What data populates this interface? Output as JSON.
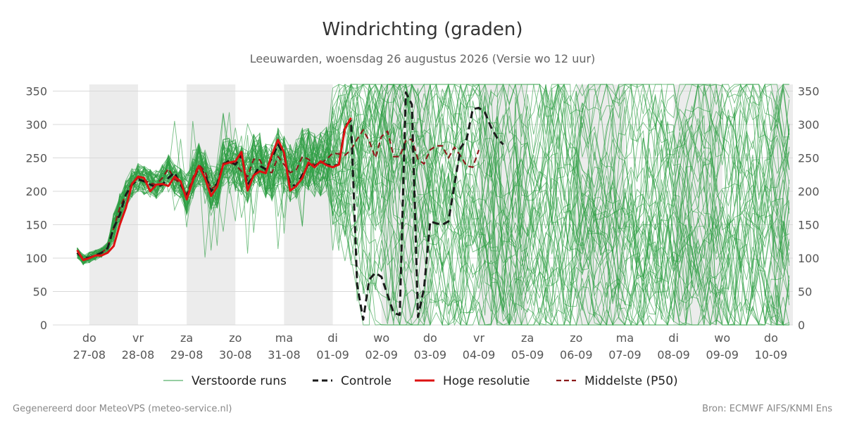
{
  "title": "Windrichting (graden)",
  "subtitle": "Leeuwarden, woensdag 26 augustus 2026 (Versie wo 12 uur)",
  "footer_left": "Gegenereerd door MeteoVPS (meteo-service.nl)",
  "footer_right": "Bron: ECMWF AIFS/KNMI Ens",
  "chart_data": {
    "type": "line",
    "title": "Windrichting (graden)",
    "ylim": [
      0,
      360
    ],
    "yticks": [
      0,
      50,
      100,
      150,
      200,
      250,
      300,
      350
    ],
    "x_unit": "days from 27-08 00:00",
    "xlim": [
      -0.75,
      14.45
    ],
    "day_labels": [
      {
        "x": 0,
        "day": "do",
        "date": "27-08"
      },
      {
        "x": 1,
        "day": "vr",
        "date": "28-08"
      },
      {
        "x": 2,
        "day": "za",
        "date": "29-08"
      },
      {
        "x": 3,
        "day": "zo",
        "date": "30-08"
      },
      {
        "x": 4,
        "day": "ma",
        "date": "31-08"
      },
      {
        "x": 5,
        "day": "di",
        "date": "01-09"
      },
      {
        "x": 6,
        "day": "wo",
        "date": "02-09"
      },
      {
        "x": 7,
        "day": "do",
        "date": "03-09"
      },
      {
        "x": 8,
        "day": "vr",
        "date": "04-09"
      },
      {
        "x": 9,
        "day": "za",
        "date": "05-09"
      },
      {
        "x": 10,
        "day": "zo",
        "date": "06-09"
      },
      {
        "x": 11,
        "day": "ma",
        "date": "07-09"
      },
      {
        "x": 12,
        "day": "di",
        "date": "08-09"
      },
      {
        "x": 13,
        "day": "wo",
        "date": "09-09"
      },
      {
        "x": 14,
        "day": "do",
        "date": "10-09"
      }
    ],
    "shaded_days": [
      [
        0,
        1
      ],
      [
        2,
        3
      ],
      [
        4,
        5
      ],
      [
        6,
        7
      ],
      [
        8,
        9
      ],
      [
        10,
        11
      ],
      [
        12,
        13
      ],
      [
        14,
        15
      ]
    ],
    "grid": true,
    "legend_position": "bottom",
    "series": [
      {
        "name": "Hoge resolutie",
        "color": "#dd1111",
        "style": "solid",
        "points": [
          [
            -0.25,
            112
          ],
          [
            -0.125,
            97
          ],
          [
            0,
            100
          ],
          [
            0.125,
            104
          ],
          [
            0.25,
            104
          ],
          [
            0.375,
            108
          ],
          [
            0.5,
            118
          ],
          [
            0.625,
            150
          ],
          [
            0.75,
            175
          ],
          [
            0.875,
            211
          ],
          [
            1,
            222
          ],
          [
            1.125,
            220
          ],
          [
            1.25,
            200
          ],
          [
            1.375,
            210
          ],
          [
            1.5,
            211
          ],
          [
            1.625,
            208
          ],
          [
            1.75,
            222
          ],
          [
            1.875,
            215
          ],
          [
            2,
            188
          ],
          [
            2.125,
            216
          ],
          [
            2.25,
            238
          ],
          [
            2.375,
            220
          ],
          [
            2.5,
            193
          ],
          [
            2.625,
            207
          ],
          [
            2.75,
            240
          ],
          [
            2.875,
            243
          ],
          [
            3,
            245
          ],
          [
            3.125,
            259
          ],
          [
            3.25,
            201
          ],
          [
            3.375,
            224
          ],
          [
            3.5,
            230
          ],
          [
            3.625,
            227
          ],
          [
            3.75,
            255
          ],
          [
            3.875,
            277
          ],
          [
            4,
            258
          ],
          [
            4.125,
            201
          ],
          [
            4.25,
            208
          ],
          [
            4.375,
            220
          ],
          [
            4.5,
            243
          ],
          [
            4.625,
            236
          ],
          [
            4.75,
            245
          ],
          [
            4.875,
            239
          ],
          [
            5,
            236
          ],
          [
            5.125,
            240
          ],
          [
            5.25,
            294
          ],
          [
            5.375,
            310
          ]
        ]
      },
      {
        "name": "Controle",
        "color": "#1a1a1a",
        "style": "dashed",
        "points": [
          [
            -0.25,
            108
          ],
          [
            -0.125,
            99
          ],
          [
            0,
            101
          ],
          [
            0.125,
            104
          ],
          [
            0.25,
            108
          ],
          [
            0.375,
            115
          ],
          [
            0.5,
            145
          ],
          [
            0.625,
            165
          ],
          [
            0.75,
            195
          ],
          [
            0.875,
            210
          ],
          [
            1,
            218
          ],
          [
            1.125,
            215
          ],
          [
            1.25,
            210
          ],
          [
            1.375,
            206
          ],
          [
            1.5,
            210
          ],
          [
            1.625,
            220
          ],
          [
            1.75,
            228
          ],
          [
            1.875,
            210
          ],
          [
            2,
            193
          ],
          [
            2.125,
            215
          ],
          [
            2.25,
            236
          ],
          [
            2.375,
            225
          ],
          [
            2.5,
            200
          ],
          [
            2.625,
            212
          ],
          [
            2.75,
            240
          ],
          [
            2.875,
            246
          ],
          [
            3,
            240
          ],
          [
            3.125,
            254
          ],
          [
            3.25,
            210
          ],
          [
            3.375,
            223
          ],
          [
            3.5,
            238
          ],
          [
            3.625,
            233
          ],
          [
            3.75,
            250
          ],
          [
            3.875,
            270
          ],
          [
            4,
            255
          ],
          [
            4.125,
            210
          ],
          [
            4.25,
            208
          ],
          [
            4.375,
            225
          ],
          [
            4.5,
            240
          ],
          [
            4.625,
            238
          ],
          [
            4.75,
            244
          ],
          [
            4.875,
            240
          ],
          [
            5,
            238
          ],
          [
            5.125,
            240
          ],
          [
            5.25,
            298
          ],
          [
            5.375,
            306
          ],
          [
            5.5,
            60
          ],
          [
            5.625,
            8
          ],
          [
            5.75,
            68
          ],
          [
            5.875,
            78
          ],
          [
            6,
            72
          ],
          [
            6.125,
            45
          ],
          [
            6.25,
            18
          ],
          [
            6.375,
            15
          ],
          [
            6.5,
            348
          ],
          [
            6.625,
            330
          ],
          [
            6.75,
            12
          ],
          [
            6.875,
            55
          ],
          [
            7,
            155
          ],
          [
            7.125,
            152
          ],
          [
            7.25,
            150
          ],
          [
            7.375,
            155
          ],
          [
            7.5,
            210
          ],
          [
            7.625,
            265
          ],
          [
            7.75,
            278
          ],
          [
            7.875,
            323
          ],
          [
            8,
            325
          ],
          [
            8.125,
            318
          ],
          [
            8.25,
            296
          ],
          [
            8.375,
            280
          ],
          [
            8.5,
            270
          ]
        ]
      },
      {
        "name": "Middelste (P50)",
        "color": "#8b1a1a",
        "style": "dashed",
        "points": [
          [
            -0.25,
            108
          ],
          [
            -0.125,
            98
          ],
          [
            0,
            101
          ],
          [
            0.125,
            104
          ],
          [
            0.25,
            108
          ],
          [
            0.375,
            116
          ],
          [
            0.5,
            145
          ],
          [
            0.625,
            175
          ],
          [
            0.75,
            195
          ],
          [
            0.875,
            212
          ],
          [
            1,
            220
          ],
          [
            1.125,
            217
          ],
          [
            1.25,
            212
          ],
          [
            1.375,
            210
          ],
          [
            1.5,
            220
          ],
          [
            1.625,
            234
          ],
          [
            1.75,
            218
          ],
          [
            1.875,
            212
          ],
          [
            2,
            195
          ],
          [
            2.125,
            220
          ],
          [
            2.25,
            240
          ],
          [
            2.375,
            230
          ],
          [
            2.5,
            203
          ],
          [
            2.625,
            210
          ],
          [
            2.75,
            242
          ],
          [
            2.875,
            243
          ],
          [
            3,
            240
          ],
          [
            3.125,
            230
          ],
          [
            3.25,
            222
          ],
          [
            3.375,
            248
          ],
          [
            3.5,
            247
          ],
          [
            3.625,
            230
          ],
          [
            3.75,
            228
          ],
          [
            3.875,
            252
          ],
          [
            4,
            240
          ],
          [
            4.125,
            228
          ],
          [
            4.25,
            232
          ],
          [
            4.375,
            252
          ],
          [
            4.5,
            248
          ],
          [
            4.625,
            239
          ],
          [
            4.75,
            242
          ],
          [
            4.875,
            248
          ],
          [
            5,
            257
          ],
          [
            5.125,
            256
          ],
          [
            5.25,
            254
          ],
          [
            5.375,
            262
          ],
          [
            5.5,
            278
          ],
          [
            5.625,
            292
          ],
          [
            5.75,
            275
          ],
          [
            5.875,
            250
          ],
          [
            6,
            282
          ],
          [
            6.125,
            290
          ],
          [
            6.25,
            252
          ],
          [
            6.375,
            252
          ],
          [
            6.5,
            276
          ],
          [
            6.625,
            278
          ],
          [
            6.75,
            248
          ],
          [
            6.875,
            241
          ],
          [
            7,
            262
          ],
          [
            7.125,
            268
          ],
          [
            7.25,
            268
          ],
          [
            7.375,
            250
          ],
          [
            7.5,
            266
          ],
          [
            7.625,
            253
          ],
          [
            7.75,
            238
          ],
          [
            7.875,
            236
          ],
          [
            8,
            262
          ]
        ]
      }
    ],
    "ensemble": {
      "name": "Verstoorde runs",
      "color": "#2e9e44",
      "members": 50,
      "step_days": 0.125,
      "spread_note": "members follow the central run up to about 05-09, then scatter widely between 0 and 360"
    },
    "legend": [
      {
        "label": "Verstoorde runs",
        "style": "thin-green"
      },
      {
        "label": "Controle",
        "style": "black-dashed"
      },
      {
        "label": "Hoge resolutie",
        "style": "red-solid"
      },
      {
        "label": "Middelste (P50)",
        "style": "darkred-dashed"
      }
    ]
  }
}
